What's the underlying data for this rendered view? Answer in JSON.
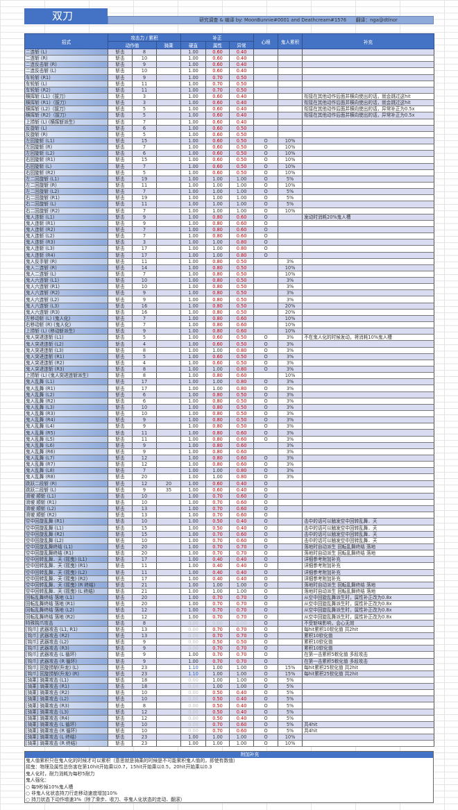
{
  "title": "双刀",
  "credit": "研究调查 & 编译 by: MoonBunnie#0001 and Deathcream#1576　　翻译：nga@dtlnor",
  "headers": {
    "name": "招式",
    "atk_group": "攻击力 / 累积",
    "motion": "动作值",
    "mount": "骑乘",
    "mod_group": "补正",
    "hitstop": "硬直",
    "element": "属性",
    "status": "异常",
    "mind_eye": "心眼",
    "demon": "鬼人累积",
    "note": "补充"
  },
  "rows": [
    [
      "二连斩 (L)",
      "斩击",
      "8",
      "",
      "1.00",
      "0.60",
      "0.40",
      "",
      "",
      ""
    ],
    [
      "二连斩 (R)",
      "斩击",
      "10",
      "",
      "1.00",
      "0.60",
      "0.40",
      "",
      "",
      ""
    ],
    [
      "二连反击斩 (R)",
      "斩击",
      "9",
      "",
      "1.00",
      "0.60",
      "0.40",
      "",
      "",
      ""
    ],
    [
      "二连反击斩 (L)",
      "斩击",
      "10",
      "",
      "1.00",
      "0.60",
      "0.40",
      "",
      "",
      ""
    ],
    [
      "车轮斩 (R1)",
      "斩击",
      "9",
      "",
      "1.00",
      "0.70",
      "0.50",
      "",
      "",
      ""
    ],
    [
      "车轮斩 (L)",
      "斩击",
      "11",
      "",
      "1.00",
      "0.70",
      "0.50",
      "",
      "",
      ""
    ],
    [
      "车轮斩 (R2)",
      "斩击",
      "11",
      "",
      "1.00",
      "0.70",
      "0.50",
      "",
      "",
      ""
    ],
    [
      "横挥斩 (L1)（拔刀）",
      "斩击",
      "3",
      "",
      "1.00",
      "0.60",
      "0.40",
      "",
      "",
      "衔接在其他动作后面并横向使出的话，就会跳过这hit"
    ],
    [
      "横挥斩 (R1)（拔刀）",
      "斩击",
      "3",
      "",
      "1.00",
      "0.60",
      "0.40",
      "",
      "",
      "衔接在其他动作后面并横向使出的话，就会跳过这hit"
    ],
    [
      "横挥斩 (L2)（拔刀）",
      "斩击",
      "5",
      "",
      "1.00",
      "0.60",
      "0.40",
      "",
      "",
      "衔接在其他动作后面并横向使出的话，异常补正为0.5x"
    ],
    [
      "横挥斩 (R2)（拔刀）",
      "斩击",
      "5",
      "",
      "1.00",
      "0.60",
      "0.40",
      "",
      "",
      "衔接在其他动作后面并横向使出的话，异常补正为0.5x"
    ],
    [
      "上捞斩 (L) (横挥斩派生)",
      "斩击",
      "7",
      "",
      "1.00",
      "0.60",
      "0.40",
      "",
      "",
      ""
    ],
    [
      "反旋斩 (L)",
      "斩击",
      "6",
      "",
      "1.00",
      "0.60",
      "0.50",
      "",
      "",
      ""
    ],
    [
      "反旋斩 (R)",
      "斩击",
      "5",
      "",
      "1.00",
      "0.60",
      "0.50",
      "",
      "",
      ""
    ],
    [
      "左回旋斩 (L1)",
      "斩击",
      "15",
      "",
      "1.00",
      "0.60",
      "0.50",
      "O",
      "10%",
      ""
    ],
    [
      "左回旋斩 (R)",
      "斩击",
      "7",
      "",
      "1.00",
      "0.60",
      "0.50",
      "O",
      "10%",
      ""
    ],
    [
      "左回旋斩 (L2)",
      "斩击",
      "6",
      "",
      "1.00",
      "0.60",
      "0.50",
      "O",
      "10%",
      ""
    ],
    [
      "右回旋斩 (R1)",
      "斩击",
      "15",
      "",
      "1.00",
      "0.60",
      "0.50",
      "O",
      "10%",
      ""
    ],
    [
      "右回旋斩 (L)",
      "斩击",
      "7",
      "",
      "1.00",
      "0.60",
      "0.50",
      "O",
      "10%",
      ""
    ],
    [
      "右回旋斩 (R2)",
      "斩击",
      "5",
      "",
      "1.00",
      "0.60",
      "0.50",
      "O",
      "10%",
      ""
    ],
    [
      "左二回旋斩 (L1)",
      "斩击",
      "19",
      "",
      "1.00",
      "1.00",
      "1.00",
      "O",
      "5%",
      ""
    ],
    [
      "左二回旋斩 (R)",
      "斩击",
      "11",
      "",
      "1.00",
      "1.00",
      "1.00",
      "O",
      "10%",
      ""
    ],
    [
      "左二回旋斩 (L2)",
      "斩击",
      "7",
      "",
      "1.00",
      "1.00",
      "1.00",
      "O",
      "5%",
      ""
    ],
    [
      "右二回旋斩 (R1)",
      "斩击",
      "19",
      "",
      "1.00",
      "1.00",
      "1.00",
      "O",
      "5%",
      ""
    ],
    [
      "右二回旋斩 (L)",
      "斩击",
      "11",
      "",
      "1.00",
      "1.00",
      "1.00",
      "O",
      "5%",
      ""
    ],
    [
      "右二回旋斩 (R2)",
      "斩击",
      "7",
      "",
      "1.00",
      "1.00",
      "1.00",
      "O",
      "10%",
      ""
    ],
    [
      "鬼人连斩 (L1)",
      "斩击",
      "9",
      "",
      "1.00",
      "0.80",
      "0.60",
      "O",
      "",
      "发动时消耗20%鬼人槽"
    ],
    [
      "鬼人连斩 (R1)",
      "斩击",
      "9",
      "",
      "1.00",
      "0.80",
      "0.60",
      "O",
      "",
      ""
    ],
    [
      "鬼人连斩 (R2)",
      "斩击",
      "7",
      "",
      "1.00",
      "0.80",
      "0.60",
      "O",
      "",
      ""
    ],
    [
      "鬼人连斩 (L2)",
      "斩击",
      "7",
      "",
      "1.00",
      "0.80",
      "0.60",
      "O",
      "",
      ""
    ],
    [
      "鬼人连斩 (R3)",
      "斩击",
      "3",
      "",
      "1.00",
      "1.00",
      "0.80",
      "O",
      "",
      ""
    ],
    [
      "鬼人连斩 (L3)",
      "斩击",
      "17",
      "",
      "1.00",
      "1.00",
      "0.80",
      "O",
      "",
      ""
    ],
    [
      "鬼人连斩 (R4)",
      "斩击",
      "17",
      "",
      "1.00",
      "1.00",
      "0.80",
      "O",
      "",
      ""
    ],
    [
      "鬼人反手斩 (R)",
      "斩击",
      "11",
      "",
      "1.00",
      "0.80",
      "0.50",
      "",
      "3%",
      ""
    ],
    [
      "鬼人二连斩 (R)",
      "斩击",
      "14",
      "",
      "1.00",
      "0.80",
      "0.50",
      "",
      "10%",
      ""
    ],
    [
      "鬼人二连斩 (L)",
      "斩击",
      "7",
      "",
      "1.00",
      "0.80",
      "0.50",
      "",
      "10%",
      ""
    ],
    [
      "鬼人六连斩 (L1)",
      "斩击",
      "10",
      "",
      "1.00",
      "0.80",
      "0.50",
      "",
      "3%",
      ""
    ],
    [
      "鬼人六连斩 (R1)",
      "斩击",
      "10",
      "",
      "1.00",
      "0.80",
      "0.50",
      "",
      "3%",
      ""
    ],
    [
      "鬼人六连斩 (R2)",
      "斩击",
      "9",
      "",
      "1.00",
      "0.80",
      "0.50",
      "",
      "3%",
      ""
    ],
    [
      "鬼人六连斩 (L2)",
      "斩击",
      "9",
      "",
      "1.00",
      "0.80",
      "0.50",
      "",
      "3%",
      ""
    ],
    [
      "鬼人六连斩 (L3)",
      "斩击",
      "16",
      "",
      "1.00",
      "0.80",
      "0.50",
      "",
      "20%",
      ""
    ],
    [
      "鬼人六连斩 (R3)",
      "斩击",
      "16",
      "",
      "1.00",
      "0.80",
      "0.50",
      "",
      "20%",
      ""
    ],
    [
      "左移动斩 (L) (鬼人化)",
      "斩击",
      "7",
      "",
      "1.00",
      "0.80",
      "0.60",
      "",
      "10%",
      ""
    ],
    [
      "右移动斩 (R) (鬼人化)",
      "斩击",
      "7",
      "",
      "1.00",
      "0.80",
      "0.60",
      "",
      "10%",
      ""
    ],
    [
      "上捞斩 (L) (移动斩派生)",
      "斩击",
      "9",
      "",
      "1.00",
      "0.80",
      "0.60",
      "",
      "10%",
      ""
    ],
    [
      "鬼人突进连斩 (L1)",
      "斩击",
      "5",
      "",
      "1.00",
      "0.60",
      "0.50",
      "O",
      "3%",
      "不在鬼人化的时候发动，将消耗10%鬼人槽"
    ],
    [
      "鬼人突进连斩 (L2)",
      "斩击",
      "4",
      "",
      "1.00",
      "0.60",
      "0.50",
      "O",
      "3%",
      ""
    ],
    [
      "鬼人突进连斩 (L3)",
      "斩击",
      "8",
      "",
      "1.00",
      "1.00",
      "0.80",
      "O",
      "3%",
      ""
    ],
    [
      "鬼人突进连斩 (R1)",
      "斩击",
      "5",
      "",
      "1.00",
      "0.60",
      "0.50",
      "O",
      "3%",
      ""
    ],
    [
      "鬼人突进连斩 (R2)",
      "斩击",
      "4",
      "",
      "1.00",
      "0.60",
      "0.50",
      "O",
      "3%",
      ""
    ],
    [
      "鬼人突进连斩 (R3)",
      "斩击",
      "8",
      "",
      "1.00",
      "1.00",
      "0.80",
      "O",
      "3%",
      ""
    ],
    [
      "上捞斩 (L) (鬼人突进连斩派生)",
      "斩击",
      "8",
      "",
      "1.00",
      "0.80",
      "0.60",
      "",
      "10%",
      ""
    ],
    [
      "鬼人乱舞 (L1)",
      "斩击",
      "17",
      "",
      "1.00",
      "1.00",
      "0.80",
      "O",
      "3%",
      ""
    ],
    [
      "鬼人乱舞 (R1)",
      "斩击",
      "17",
      "",
      "1.00",
      "1.00",
      "0.80",
      "O",
      "3%",
      ""
    ],
    [
      "鬼人乱舞 (L2)",
      "斩击",
      "6",
      "",
      "1.00",
      "0.80",
      "0.50",
      "O",
      "3%",
      ""
    ],
    [
      "鬼人乱舞 (R2)",
      "斩击",
      "6",
      "",
      "1.00",
      "0.80",
      "0.50",
      "O",
      "3%",
      ""
    ],
    [
      "鬼人乱舞 (L3)",
      "斩击",
      "10",
      "",
      "1.00",
      "0.80",
      "0.50",
      "O",
      "3%",
      ""
    ],
    [
      "鬼人乱舞 (R3)",
      "斩击",
      "10",
      "",
      "1.00",
      "0.80",
      "0.50",
      "O",
      "3%",
      ""
    ],
    [
      "鬼人乱舞 (R4)",
      "斩击",
      "9",
      "",
      "1.00",
      "0.80",
      "0.50",
      "O",
      "3%",
      ""
    ],
    [
      "鬼人乱舞 (L4)",
      "斩击",
      "9",
      "",
      "1.00",
      "0.80",
      "0.50",
      "O",
      "3%",
      ""
    ],
    [
      "鬼人乱舞 (R5)",
      "斩击",
      "11",
      "",
      "1.00",
      "0.80",
      "0.60",
      "O",
      "3%",
      ""
    ],
    [
      "鬼人乱舞 (L5)",
      "斩击",
      "11",
      "",
      "1.00",
      "0.80",
      "0.60",
      "O",
      "3%",
      ""
    ],
    [
      "鬼人乱舞 (L6)",
      "斩击",
      "9",
      "",
      "1.00",
      "0.80",
      "0.60",
      "",
      "3%",
      ""
    ],
    [
      "鬼人乱舞 (R6)",
      "斩击",
      "9",
      "",
      "1.00",
      "0.80",
      "0.60",
      "",
      "3%",
      ""
    ],
    [
      "鬼人乱舞 (L7)",
      "斩击",
      "12",
      "",
      "1.00",
      "0.80",
      "0.60",
      "O",
      "3%",
      ""
    ],
    [
      "鬼人乱舞 (R7)",
      "斩击",
      "12",
      "",
      "1.00",
      "0.80",
      "0.60",
      "O",
      "3%",
      ""
    ],
    [
      "鬼人乱舞 (L8)",
      "斩击",
      "7",
      "",
      "1.00",
      "1.00",
      "0.80",
      "O",
      "3%",
      ""
    ],
    [
      "鬼人乱舞 (R8)",
      "斩击",
      "20",
      "",
      "1.00",
      "1.00",
      "0.80",
      "O",
      "3%",
      ""
    ],
    [
      "跳跃二段斩 (R)",
      "斩击",
      "12",
      "20",
      "1.00",
      "0.60",
      "0.40",
      "O",
      "",
      ""
    ],
    [
      "跳跃二段斩 (L)",
      "斩击",
      "9",
      "35",
      "1.00",
      "0.60",
      "0.40",
      "O",
      "",
      ""
    ],
    [
      "滑坡 顺斩 (L1)",
      "斩击",
      "10",
      "",
      "1.00",
      "0.70",
      "0.60",
      "O",
      "",
      ""
    ],
    [
      "滑坡 顺斩 (R1)",
      "斩击",
      "10",
      "",
      "1.00",
      "0.70",
      "0.60",
      "O",
      "",
      ""
    ],
    [
      "滑坡 顺斩 (L2)",
      "斩击",
      "13",
      "",
      "1.00",
      "0.70",
      "0.60",
      "O",
      "",
      ""
    ],
    [
      "滑坡 顺斩 (R2)",
      "斩击",
      "13",
      "",
      "1.00",
      "0.70",
      "0.60",
      "O",
      "",
      ""
    ],
    [
      "空中回旋乱舞 (R1)",
      "斩击",
      "10",
      "",
      "1.00",
      "0.50",
      "0.40",
      "O",
      "",
      "击中的话可以触发空中回转乱舞．天"
    ],
    [
      "空中回旋乱舞 (L1)",
      "斩击",
      "15",
      "",
      "1.00",
      "0.50",
      "0.40",
      "O",
      "",
      "击中的话可以触发空中回转乱舞．天"
    ],
    [
      "空中回旋乱舞 (R2)",
      "斩击",
      "15",
      "",
      "1.00",
      "0.70",
      "0.60",
      "O",
      "",
      "击中的话可以触发空中回转乱舞．天"
    ],
    [
      "空中回旋乱舞 (L2)",
      "斩击",
      "10",
      "",
      "1.00",
      "0.70",
      "0.60",
      "O",
      "",
      "击中的话可以触发空中回转乱舞．天"
    ],
    [
      "空中回旋乱舞终结 (L1)",
      "斩击",
      "20",
      "",
      "1.00",
      "0.70",
      "0.70",
      "O",
      "",
      "落地时自动派生 回転乱舞终结 落地"
    ],
    [
      "空中回旋乱舞终结 (R1)",
      "斩击",
      "20",
      "",
      "1.00",
      "0.70",
      "0.70",
      "O",
      "",
      "落地时自动派生 回転乱舞终结 落地"
    ],
    [
      "空中回转乱舞．天 (摇曳) (L1)",
      "斩击",
      "17",
      "",
      "1.00",
      "0.40",
      "0.40",
      "O",
      "",
      "详细参考附加补充"
    ],
    [
      "空中回转乱舞．天 (摇曳) (R1)",
      "斩击",
      "11",
      "",
      "1.00",
      "0.40",
      "0.40",
      "O",
      "",
      "详细参考附加补充"
    ],
    [
      "空中回转乱舞．天 (摇曳) (L2)",
      "斩击",
      "11",
      "",
      "1.00",
      "0.40",
      "0.40",
      "O",
      "",
      "详细参考附加补充"
    ],
    [
      "空中回转乱舞．天 (摇曳) (R2)",
      "斩击",
      "17",
      "",
      "1.00",
      "0.40",
      "0.40",
      "O",
      "",
      "详细参考附加补充"
    ],
    [
      "空中回转乱舞．天 (摇曳) (R 终结)",
      "斩击",
      "21",
      "",
      "1.00",
      "1.00",
      "1.00",
      "O",
      "",
      "落地时自动派生 回転乱舞终结 落地"
    ],
    [
      "空中回转乱舞．天 (摇曳) (L 终结)",
      "斩击",
      "21",
      "",
      "1.00",
      "1.00",
      "1.00",
      "O",
      "",
      "落地时自动派生 回転乱舞终结 落地"
    ],
    [
      "回転乱舞终结 落地 (L1)",
      "斩击",
      "20",
      "",
      "1.00",
      "0.70",
      "0.70",
      "O",
      "",
      "从空中回旋乱舞派生时，属性补正改为0.8x"
    ],
    [
      "回転乱舞终结 落地 (R1)",
      "斩击",
      "20",
      "",
      "1.00",
      "0.70",
      "0.70",
      "O",
      "",
      "从空中回旋乱舞派生时，属性补正改为0.8x"
    ],
    [
      "回転乱舞终结 落地 (L2)",
      "斩击",
      "12",
      "",
      "1.00",
      "0.70",
      "0.70",
      "O",
      "",
      "从空中回旋乱舞派生时，属性补正改为0.8x"
    ],
    [
      "回転乱舞终结 落地 (R2)",
      "斩击",
      "12",
      "",
      "1.00",
      "0.70",
      "0.70",
      "O",
      "",
      "从空中回旋乱舞派生时，属性补正改为0.8x"
    ],
    [
      "特殊钩爪攻击",
      "斩击",
      "8",
      "",
      "0.00",
      "0.00",
      "0.00",
      "O",
      "",
      "不受斩味影响，会心无效"
    ],
    [
      "[钩爪] 武器攻击 (L1, R1)",
      "斩击",
      "13",
      "",
      "0.00",
      "0.70",
      "0.70",
      "O",
      "",
      "每hit累积10软化值 共2hit"
    ],
    [
      "[钩爪] 武器攻击 (R2)",
      "斩击",
      "13",
      "",
      "0.00",
      "0.70",
      "0.70",
      "O",
      "",
      "累积10软化值"
    ],
    [
      "[钩爪] 武器攻击 (L2)",
      "斩击",
      "9",
      "",
      "0.00",
      "0.50",
      "0.50",
      "O",
      "",
      "累积10软化值"
    ],
    [
      "[钩爪] 武器攻击 (R3)",
      "斩击",
      "9",
      "",
      "0.00",
      "0.70",
      "0.70",
      "O",
      "",
      "累积10软化值"
    ],
    [
      "[钩爪] 武器攻击 (L 循环)",
      "斩击",
      "9",
      "",
      "1.00",
      "0.70",
      "0.70",
      "O",
      "",
      "在第一击累积5軟化值 多段攻击"
    ],
    [
      "[钩爪] 武器攻击 (R 循环)",
      "斩击",
      "9",
      "",
      "1.00",
      "0.70",
      "0.70",
      "O",
      "",
      "在第一击累积5軟化值 多段攻击"
    ],
    [
      "[钩爪] 回旋捞斩(升龙) (L)",
      "斩击",
      "23",
      "",
      "1.10",
      "1.00",
      "1.00",
      "O",
      "15%",
      "每hit累积25软化值 共2hit"
    ],
    [
      "[钩爪] 回旋捞斩(升龙) (R)",
      "斩击",
      "23",
      "",
      "1.10",
      "1.00",
      "1.00",
      "O",
      "15%",
      "每hit累积25软化值 共2hit"
    ],
    [
      "[骑乘] 骑乘攻击 (L1)",
      "斩击",
      "18",
      "",
      "0.00",
      "1.00",
      "1.00",
      "O",
      "5%",
      ""
    ],
    [
      "[骑乘] 骑乘攻击 (R1)",
      "斩击",
      "18",
      "",
      "0.00",
      "1.00",
      "1.00",
      "O",
      "5%",
      ""
    ],
    [
      "[骑乘] 骑乘攻击 (R2)",
      "斩击",
      "10",
      "",
      "0.00",
      "0.50",
      "0.40",
      "O",
      "5%",
      ""
    ],
    [
      "[骑乘] 骑乘攻击 (L2)",
      "斩击",
      "10",
      "",
      "0.00",
      "0.50",
      "0.40",
      "O",
      "5%",
      ""
    ],
    [
      "[骑乘] 骑乘攻击 (R3)",
      "斩击",
      "8",
      "",
      "0.00",
      "0.50",
      "0.40",
      "O",
      "5%",
      ""
    ],
    [
      "[骑乘] 骑乘攻击 (L3)",
      "斩击",
      "12",
      "",
      "0.00",
      "0.50",
      "0.40",
      "O",
      "5%",
      ""
    ],
    [
      "[骑乘] 骑乘攻击 (R4)",
      "斩击",
      "12",
      "",
      "0.00",
      "0.50",
      "0.40",
      "O",
      "5%",
      ""
    ],
    [
      "[骑乘] 骑乘攻击 (L 循环)",
      "斩击",
      "10",
      "",
      "0.00",
      "0.70",
      "0.60",
      "O",
      "5%",
      "共4hit"
    ],
    [
      "[骑乘] 骑乘攻击 (R 循环)",
      "斩击",
      "10",
      "",
      "0.00",
      "0.70",
      "0.60",
      "O",
      "5%",
      "共4hit"
    ],
    [
      "[骑乘] 骑乘攻击 (L 终结)",
      "斩击",
      "23",
      "",
      "1.00",
      "1.00",
      "1.00",
      "O",
      "10%",
      ""
    ],
    [
      "[骑乘] 骑乘攻击 (R 终结)",
      "斩击",
      "23",
      "",
      "1.00",
      "1.00",
      "1.00",
      "O",
      "10%",
      ""
    ]
  ],
  "footer": {
    "title": "附加补充",
    "lines": [
      "鬼人值累积只在鬼人化的时候才可以累积（意思就是骑乘的时候是不可能累积鬼人值的，即使有数值）",
      "摇曳：物理及属性总伤害在第10hit开始乘以0.7，15hit开始乘以0.5，20hit开始乘以0.3",
      "鬼人化时，耐力消耗为每秒5耐力",
      "鬼人强化：",
      "○ 每9秒掉10%鬼人槽",
      "○ 非鬼人化状态持刀行走移动速度增加10%",
      "○ 持刀状态下动作增速3%（除了滑步、收刀、非鬼人化状态的走动、翻滚）"
    ]
  },
  "colors": {
    "header": "#4472c4",
    "credit_bar": "#8eaadb",
    "low_modifier": "#c00000",
    "zero_modifier": "#bbbbbb",
    "high_modifier": "#2f5bb7"
  }
}
